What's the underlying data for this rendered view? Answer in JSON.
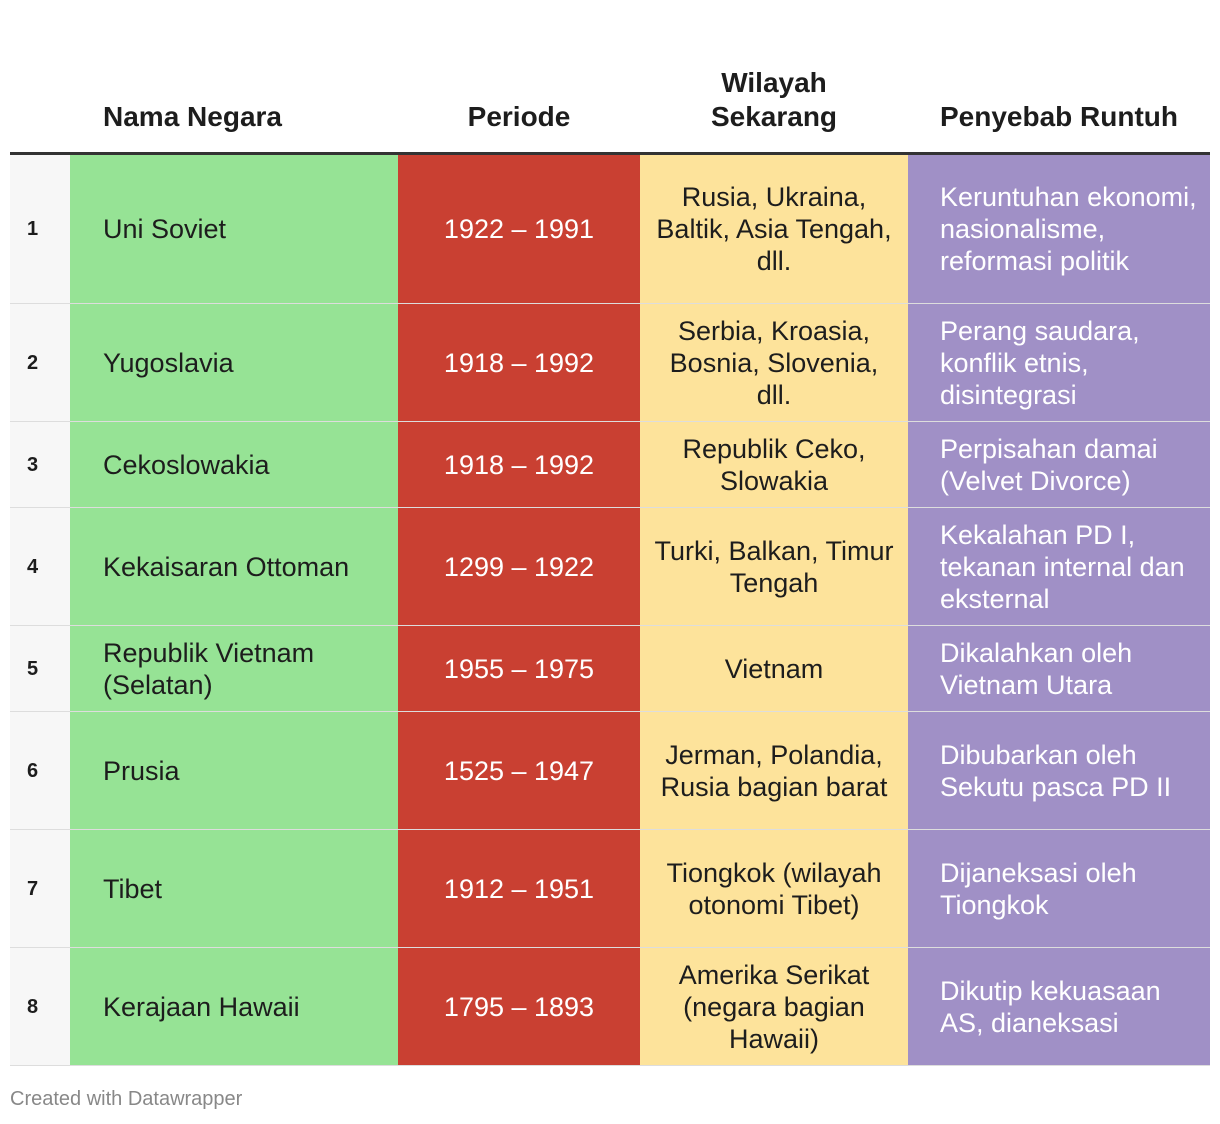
{
  "chart_data": {
    "type": "table",
    "columns": [
      "",
      "Nama Negara",
      "Periode",
      "Wilayah Sekarang",
      "Penyebab Runtuh"
    ],
    "rows": [
      {
        "no": "1",
        "name": "Uni Soviet",
        "period": "1922 – 1991",
        "region": "Rusia, Ukraina, Baltik, Asia Tengah, dll.",
        "cause": "Keruntuhan ekonomi, nasionalisme, reformasi politik",
        "row_height": 150
      },
      {
        "no": "2",
        "name": "Yugoslavia",
        "period": "1918 – 1992",
        "region": "Serbia, Kroasia, Bosnia, Slovenia, dll.",
        "cause": "Perang saudara, konflik etnis, disintegrasi",
        "row_height": 118
      },
      {
        "no": "3",
        "name": "Cekoslowakia",
        "period": "1918 – 1992",
        "region": "Republik Ceko, Slowakia",
        "cause": "Perpisahan damai (Velvet Divorce)",
        "row_height": 86
      },
      {
        "no": "4",
        "name": "Kekaisaran Ottoman",
        "period": "1299 – 1922",
        "region": "Turki, Balkan, Timur Tengah",
        "cause": "Kekalahan PD I, tekanan internal dan eksternal",
        "row_height": 118
      },
      {
        "no": "5",
        "name": "Republik Vietnam (Selatan)",
        "period": "1955 – 1975",
        "region": "Vietnam",
        "cause": "Dikalahkan oleh Vietnam Utara",
        "row_height": 86
      },
      {
        "no": "6",
        "name": "Prusia",
        "period": "1525 – 1947",
        "region": "Jerman, Polandia, Rusia bagian barat",
        "cause": "Dibubarkan oleh Sekutu pasca PD II",
        "row_height": 118
      },
      {
        "no": "7",
        "name": "Tibet",
        "period": "1912 – 1951",
        "region": "Tiongkok (wilayah otonomi Tibet)",
        "cause": "Dijaneksasi oleh Tiongkok",
        "row_height": 118
      },
      {
        "no": "8",
        "name": "Kerajaan Hawaii",
        "period": "1795 – 1893",
        "region": "Amerika Serikat (negara bagian Hawaii)",
        "cause": "Dikutip kekuasaan AS, dianeksasi",
        "row_height": 118
      }
    ],
    "colors": {
      "name": "#96e395",
      "period": "#c94032",
      "region": "#fde39b",
      "cause": "#a090c6",
      "index": "#f7f7f7"
    }
  },
  "footer": "Created with Datawrapper"
}
